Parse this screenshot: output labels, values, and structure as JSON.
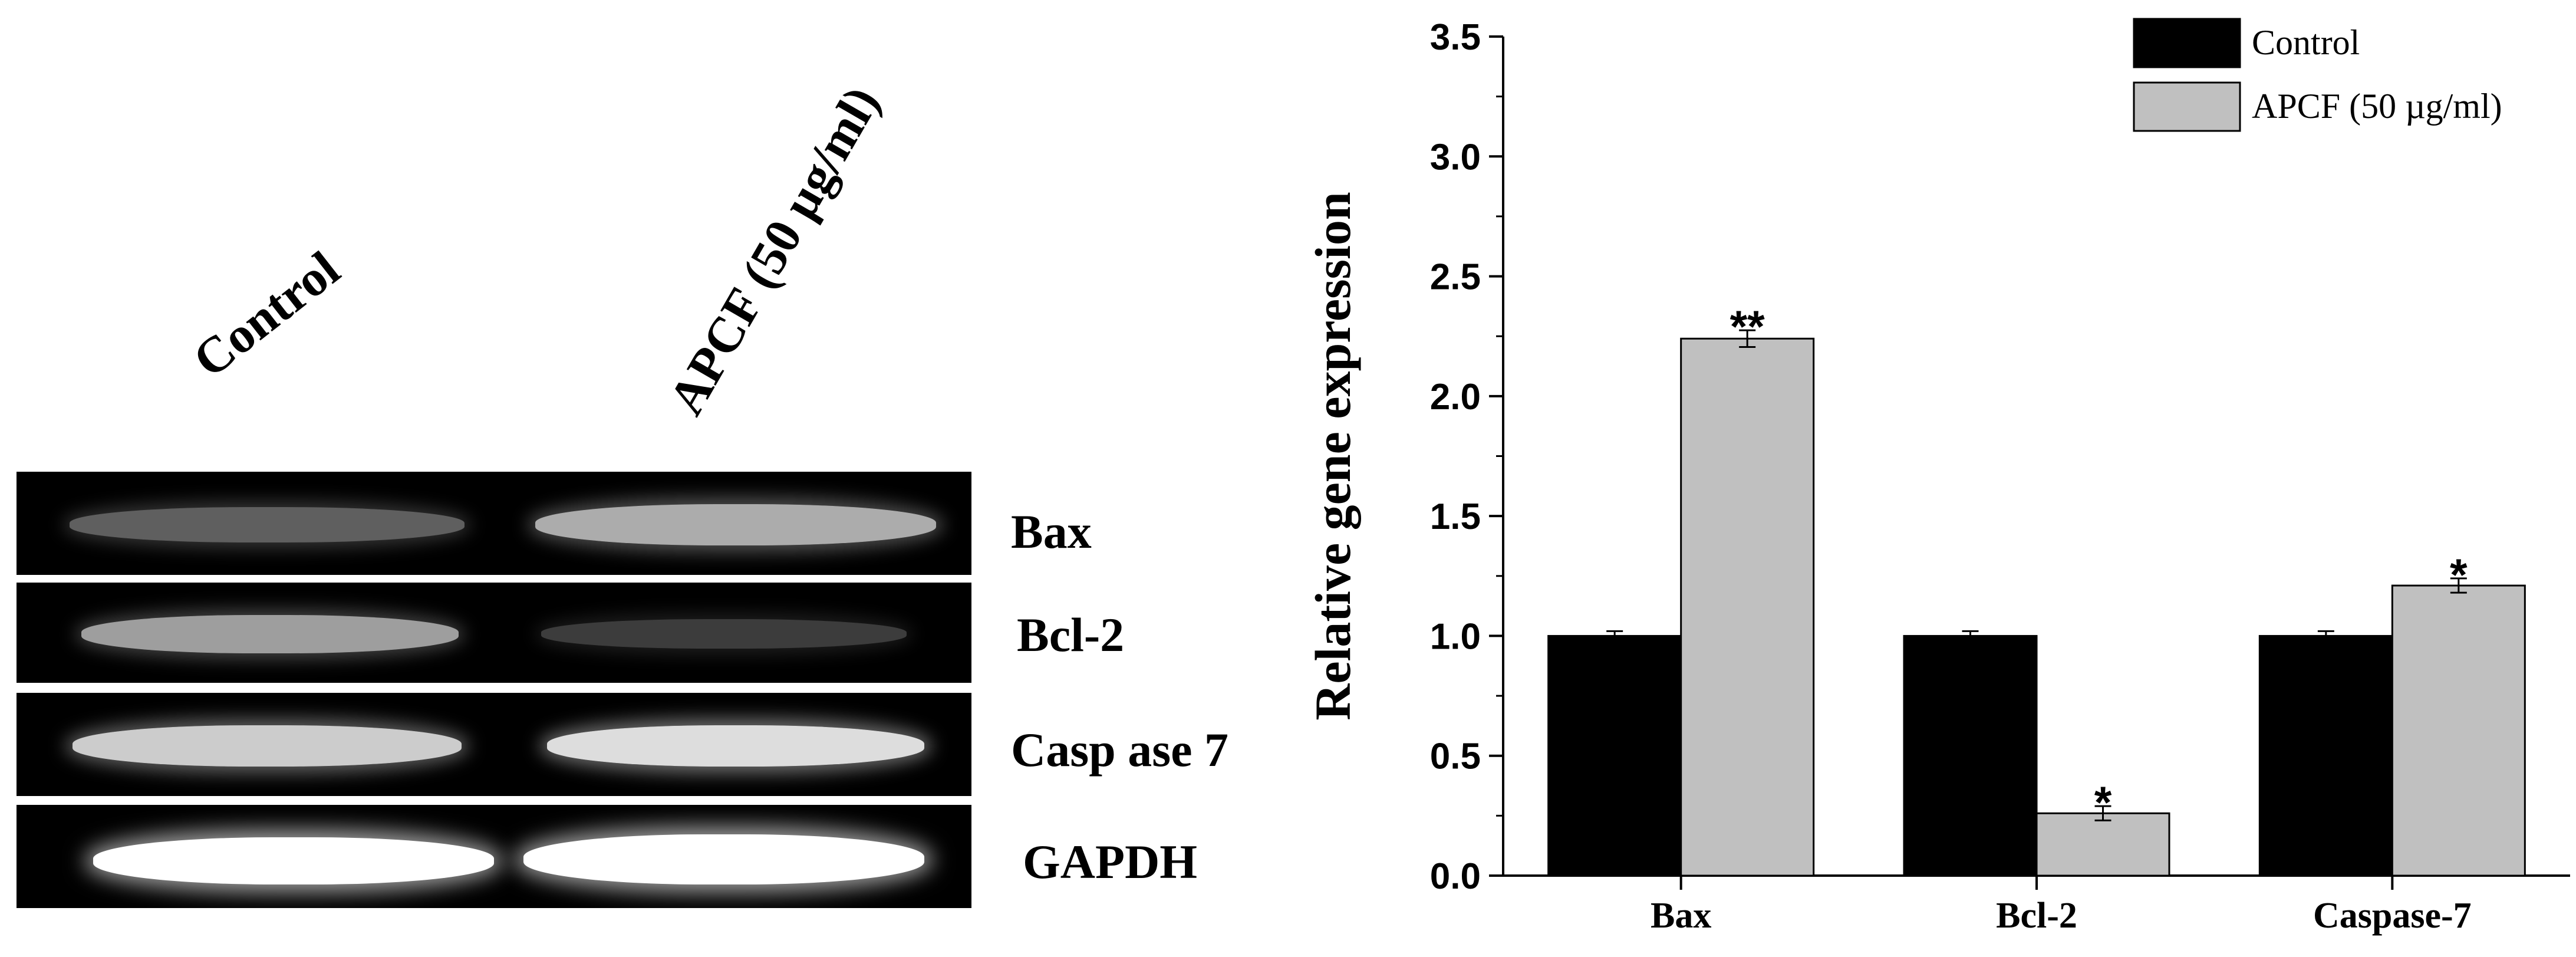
{
  "gel": {
    "lanes": [
      "Control",
      "APCF (50 µg/ml)"
    ],
    "genes": [
      "Bax",
      "Bcl-2",
      "Casp ase 7",
      "GAPDH"
    ],
    "band_intensity": [
      [
        0.45,
        0.75
      ],
      [
        0.7,
        0.3
      ],
      [
        0.85,
        0.9
      ],
      [
        1.0,
        1.0
      ]
    ]
  },
  "chart_data": {
    "type": "bar",
    "ylabel": "Relative gene expression",
    "xlabel": "",
    "title": "",
    "categories": [
      "Bax",
      "Bcl-2",
      "Caspase-7"
    ],
    "ylim": [
      0,
      3.5
    ],
    "yticks": [
      "0.0",
      "0.5",
      "1.0",
      "1.5",
      "2.0",
      "2.5",
      "3.0",
      "3.5"
    ],
    "series": [
      {
        "name": "Control",
        "values": [
          1.0,
          1.0,
          1.0
        ],
        "errors": [
          0.01,
          0.01,
          0.01
        ],
        "color": "#000000",
        "annotations": [
          "",
          "",
          ""
        ]
      },
      {
        "name": "APCF (50 µg/ml)",
        "values": [
          2.24,
          0.26,
          1.21
        ],
        "errors": [
          0.025,
          0.02,
          0.02
        ],
        "color": "#c0c0c0",
        "annotations": [
          "**",
          "*",
          "*"
        ]
      }
    ],
    "legend_position": "top-right",
    "grid": false
  }
}
